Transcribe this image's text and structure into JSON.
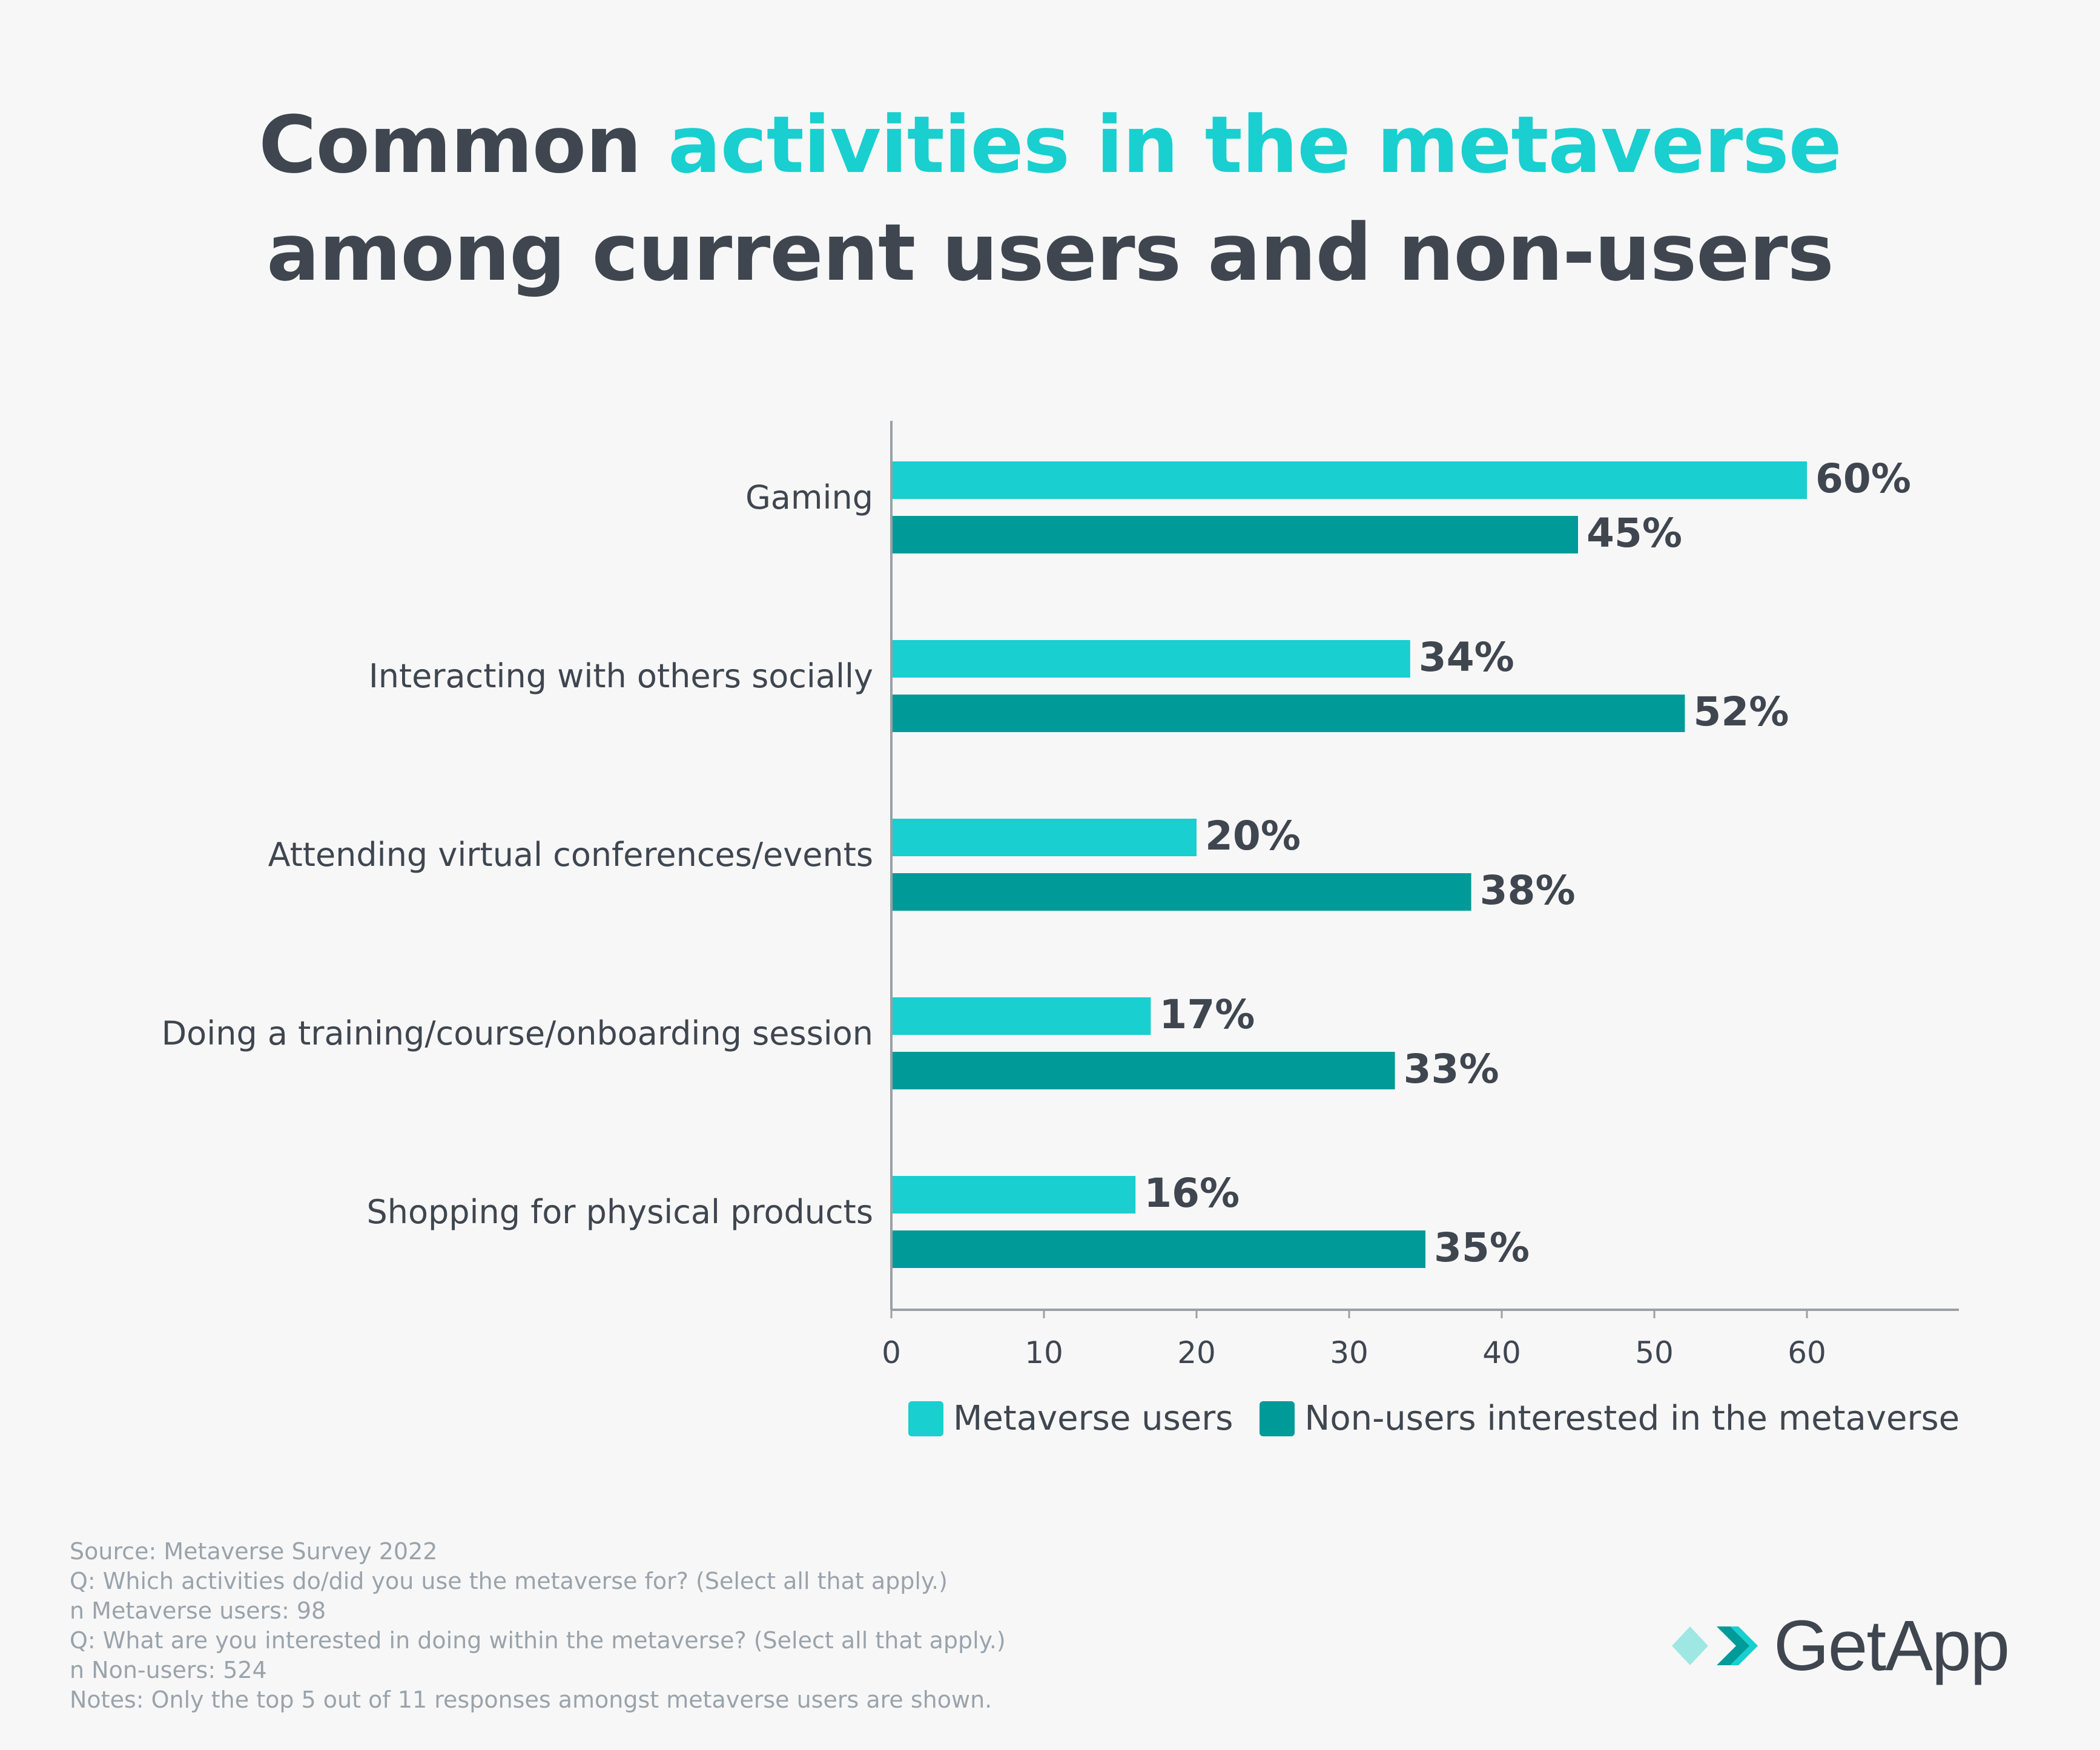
{
  "title": {
    "part1": "Common ",
    "accent": "activities  in the metaverse",
    "line2": "among current users and non-users"
  },
  "colors": {
    "users": "#19cfcf",
    "nonusers": "#009a98",
    "text": "#3f4650",
    "axis": "#9aa0a6"
  },
  "chart_data": {
    "type": "bar",
    "orientation": "horizontal",
    "categories": [
      "Gaming",
      "Interacting with others socially",
      "Attending virtual conferences/events",
      "Doing a training/course/onboarding session",
      "Shopping for physical products"
    ],
    "series": [
      {
        "name": "Metaverse users",
        "values": [
          60,
          34,
          20,
          17,
          16
        ],
        "labels": [
          "60%",
          "34%",
          "20%",
          "17%",
          "16%"
        ]
      },
      {
        "name": "Non-users interested in the metaverse",
        "values": [
          45,
          52,
          38,
          33,
          35
        ],
        "labels": [
          "45%",
          "52%",
          "38%",
          "33%",
          "35%"
        ]
      }
    ],
    "xticks": [
      0,
      10,
      20,
      30,
      40,
      50,
      60
    ],
    "xlim": [
      0,
      70
    ],
    "legend_position": "bottom"
  },
  "legend": {
    "users": "Metaverse users",
    "nonusers": "Non-users interested in the metaverse"
  },
  "footer": [
    "Source: Metaverse Survey 2022",
    "Q: Which activities do/did you use the metaverse for?  (Select all that apply.)",
    "n Metaverse users: 98",
    "Q: What are you interested in doing within the metaverse? (Select all that apply.)",
    "n Non-users: 524",
    "Notes: Only the top 5 out of 11 responses amongst metaverse users are shown."
  ],
  "brand": {
    "name": "GetApp"
  }
}
